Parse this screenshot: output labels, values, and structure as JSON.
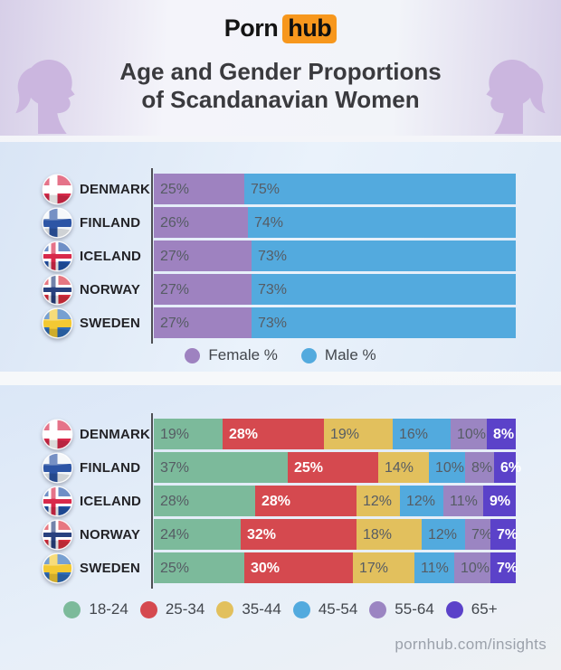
{
  "header": {
    "logo_text_1": "Porn",
    "logo_text_2": "hub",
    "title_line1": "Age and Gender Proportions",
    "title_line2": "of Scandanavian Women"
  },
  "gender_section": {
    "rows": [
      {
        "country": "DENMARK",
        "flag": "denmark-flag-icon",
        "female_label": "25%",
        "male_label": "75%"
      },
      {
        "country": "FINLAND",
        "flag": "finland-flag-icon",
        "female_label": "26%",
        "male_label": "74%"
      },
      {
        "country": "ICELAND",
        "flag": "iceland-flag-icon",
        "female_label": "27%",
        "male_label": "73%"
      },
      {
        "country": "NORWAY",
        "flag": "norway-flag-icon",
        "female_label": "27%",
        "male_label": "73%"
      },
      {
        "country": "SWEDEN",
        "flag": "sweden-flag-icon",
        "female_label": "27%",
        "male_label": "73%"
      }
    ],
    "legend": [
      {
        "label": "Female %",
        "color": "#9e82c0"
      },
      {
        "label": "Male %",
        "color": "#53aade"
      }
    ]
  },
  "age_section": {
    "rows": [
      {
        "country": "DENMARK",
        "flag": "denmark-flag-icon",
        "labels": [
          "19%",
          "28%",
          "19%",
          "16%",
          "10%",
          "8%"
        ]
      },
      {
        "country": "FINLAND",
        "flag": "finland-flag-icon",
        "labels": [
          "37%",
          "25%",
          "14%",
          "10%",
          "8%",
          "6%"
        ]
      },
      {
        "country": "ICELAND",
        "flag": "iceland-flag-icon",
        "labels": [
          "28%",
          "28%",
          "12%",
          "12%",
          "11%",
          "9%"
        ]
      },
      {
        "country": "NORWAY",
        "flag": "norway-flag-icon",
        "labels": [
          "24%",
          "32%",
          "18%",
          "12%",
          "7%",
          "7%"
        ]
      },
      {
        "country": "SWEDEN",
        "flag": "sweden-flag-icon",
        "labels": [
          "25%",
          "30%",
          "17%",
          "11%",
          "10%",
          "7%"
        ]
      }
    ],
    "legend": [
      {
        "label": "18-24",
        "color": "#7cba9b",
        "value_color": "#565c64",
        "value_bold": false
      },
      {
        "label": "25-34",
        "color": "#d5494f",
        "value_color": "#ffffff",
        "value_bold": true
      },
      {
        "label": "35-44",
        "color": "#e2c05d",
        "value_color": "#565c64",
        "value_bold": false
      },
      {
        "label": "45-54",
        "color": "#52aade",
        "value_color": "#565c64",
        "value_bold": false
      },
      {
        "label": "55-64",
        "color": "#9b85c2",
        "value_color": "#565c64",
        "value_bold": false
      },
      {
        "label": "65+",
        "color": "#5b42c9",
        "value_color": "#ffffff",
        "value_bold": true
      }
    ]
  },
  "footer": {
    "url": "pornhub.com/insights"
  },
  "colors": {
    "brand_orange": "#f7971d",
    "female": "#9e82c0",
    "male": "#53aade",
    "silhouette": "#cbb6df",
    "axis": "#4e4f54"
  },
  "chart_data": [
    {
      "type": "bar",
      "orientation": "horizontal",
      "stacked": true,
      "title": "Gender proportions",
      "categories": [
        "Denmark",
        "Finland",
        "Iceland",
        "Norway",
        "Sweden"
      ],
      "series": [
        {
          "name": "Female %",
          "values": [
            25,
            26,
            27,
            27,
            27
          ]
        },
        {
          "name": "Male %",
          "values": [
            75,
            74,
            73,
            73,
            73
          ]
        }
      ],
      "xlim": [
        0,
        100
      ],
      "legend_position": "bottom",
      "grid": false
    },
    {
      "type": "bar",
      "orientation": "horizontal",
      "stacked": true,
      "title": "Age proportions",
      "categories": [
        "Denmark",
        "Finland",
        "Iceland",
        "Norway",
        "Sweden"
      ],
      "series": [
        {
          "name": "18-24",
          "values": [
            19,
            37,
            28,
            24,
            25
          ]
        },
        {
          "name": "25-34",
          "values": [
            28,
            25,
            28,
            32,
            30
          ]
        },
        {
          "name": "35-44",
          "values": [
            19,
            14,
            12,
            18,
            17
          ]
        },
        {
          "name": "45-54",
          "values": [
            16,
            10,
            12,
            12,
            11
          ]
        },
        {
          "name": "55-64",
          "values": [
            10,
            8,
            11,
            7,
            10
          ]
        },
        {
          "name": "65+",
          "values": [
            8,
            6,
            9,
            7,
            7
          ]
        }
      ],
      "xlim": [
        0,
        100
      ],
      "legend_position": "bottom",
      "grid": false
    }
  ]
}
